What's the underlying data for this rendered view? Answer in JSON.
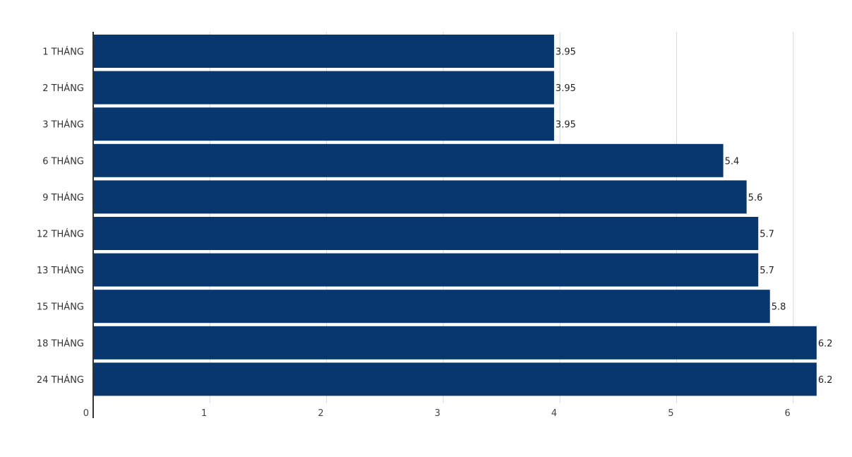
{
  "chart_data": {
    "type": "bar",
    "orientation": "horizontal",
    "categories": [
      "1 THÁNG",
      "2 THÁNG",
      "3 THÁNG",
      "6 THÁNG",
      "9 THÁNG",
      "12 THÁNG",
      "13 THÁNG",
      "15 THÁNG",
      "18 THÁNG",
      "24 THÁNG"
    ],
    "values": [
      3.95,
      3.95,
      3.95,
      5.4,
      5.6,
      5.7,
      5.7,
      5.8,
      6.2,
      6.2
    ],
    "data_labels": [
      "3.95",
      "3.95",
      "3.95",
      "5.4",
      "5.6",
      "5.7",
      "5.7",
      "5.8",
      "6.2",
      "6.2"
    ],
    "x_ticks": [
      "0",
      "1",
      "2",
      "3",
      "4",
      "5",
      "6"
    ],
    "xlim": [
      0,
      6.2
    ],
    "grid": "vertical",
    "legend": "none",
    "bar_color": "#08376f",
    "grid_color": "#d9d9d9",
    "axis_color": "#333333"
  }
}
